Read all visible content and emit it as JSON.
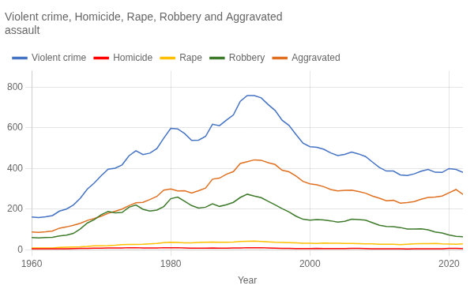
{
  "chart_data": {
    "type": "line",
    "title": [
      "Violent crime, Homicide, Rape, Robbery and Aggravated",
      "assault"
    ],
    "xlabel": "Year",
    "x": [
      1960,
      1961,
      1962,
      1963,
      1964,
      1965,
      1966,
      1967,
      1968,
      1969,
      1970,
      1971,
      1972,
      1973,
      1974,
      1975,
      1976,
      1977,
      1978,
      1979,
      1980,
      1981,
      1982,
      1983,
      1984,
      1985,
      1986,
      1987,
      1988,
      1989,
      1990,
      1991,
      1992,
      1993,
      1994,
      1995,
      1996,
      1997,
      1998,
      1999,
      2000,
      2001,
      2002,
      2003,
      2004,
      2005,
      2006,
      2007,
      2008,
      2009,
      2010,
      2011,
      2012,
      2013,
      2014,
      2015,
      2016,
      2017,
      2018,
      2019,
      2020,
      2021,
      2022
    ],
    "series": [
      {
        "name": "Violent crime",
        "color": "#4472c4",
        "values": [
          161,
          158,
          162,
          168,
          190,
          200,
          220,
          253,
          298,
          328,
          364,
          396,
          401,
          417,
          462,
          487,
          468,
          475,
          497,
          549,
          597,
          594,
          571,
          538,
          539,
          557,
          617,
          610,
          637,
          663,
          730,
          758,
          758,
          747,
          714,
          685,
          637,
          611,
          567,
          524,
          507,
          504,
          494,
          476,
          463,
          469,
          480,
          471,
          458,
          431,
          404,
          387,
          387,
          368,
          365,
          373,
          386,
          395,
          381,
          380,
          399,
          395,
          380
        ]
      },
      {
        "name": "Homicide",
        "color": "#ff0000",
        "values": [
          5,
          5,
          5,
          5,
          5,
          5,
          6,
          7,
          7,
          8,
          8,
          9,
          9,
          9,
          10,
          10,
          9,
          9,
          9,
          10,
          10,
          10,
          9,
          8,
          8,
          8,
          9,
          8,
          8,
          9,
          9,
          10,
          10,
          10,
          9,
          8,
          7,
          7,
          6,
          6,
          6,
          7,
          6,
          6,
          6,
          6,
          7,
          7,
          6,
          5,
          5,
          5,
          5,
          5,
          4,
          5,
          5,
          5,
          5,
          5,
          7,
          7,
          6
        ]
      },
      {
        "name": "Rape",
        "color": "#ffbf00",
        "values": [
          9,
          9,
          9,
          9,
          11,
          12,
          13,
          14,
          16,
          19,
          19,
          20,
          22,
          25,
          26,
          26,
          27,
          29,
          31,
          35,
          37,
          36,
          34,
          34,
          36,
          37,
          38,
          37,
          37,
          38,
          41,
          42,
          43,
          41,
          39,
          37,
          36,
          35,
          34,
          32,
          32,
          31,
          33,
          32,
          32,
          31,
          31,
          30,
          29,
          29,
          27,
          27,
          27,
          25,
          27,
          29,
          30,
          30,
          31,
          29,
          28,
          27,
          29
        ]
      },
      {
        "name": "Robbery",
        "color": "#3d7a2a",
        "values": [
          60,
          58,
          60,
          61,
          68,
          72,
          80,
          102,
          131,
          148,
          172,
          188,
          181,
          183,
          209,
          220,
          199,
          190,
          195,
          212,
          251,
          259,
          238,
          217,
          205,
          209,
          226,
          213,
          221,
          233,
          257,
          273,
          264,
          256,
          238,
          221,
          202,
          186,
          165,
          150,
          145,
          148,
          146,
          142,
          136,
          140,
          150,
          148,
          145,
          133,
          120,
          114,
          113,
          109,
          102,
          102,
          103,
          98,
          87,
          82,
          73,
          66,
          64
        ]
      },
      {
        "name": "Aggravated",
        "color": "#e07020",
        "values": [
          87,
          85,
          88,
          92,
          106,
          112,
          120,
          130,
          144,
          153,
          165,
          179,
          189,
          200,
          217,
          231,
          233,
          247,
          262,
          293,
          299,
          289,
          290,
          279,
          290,
          303,
          347,
          352,
          371,
          384,
          424,
          433,
          442,
          440,
          428,
          419,
          391,
          383,
          362,
          336,
          324,
          319,
          310,
          296,
          289,
          292,
          293,
          286,
          278,
          264,
          253,
          241,
          243,
          229,
          232,
          237,
          248,
          257,
          259,
          264,
          280,
          296,
          272
        ]
      }
    ],
    "xlim": [
      1960,
      2022
    ],
    "xticks": [
      1960,
      1980,
      2000,
      2020
    ],
    "ylim": [
      0,
      880
    ],
    "yticks": [
      0,
      200,
      400,
      600,
      800
    ],
    "grid": true,
    "legend": "upper left"
  }
}
